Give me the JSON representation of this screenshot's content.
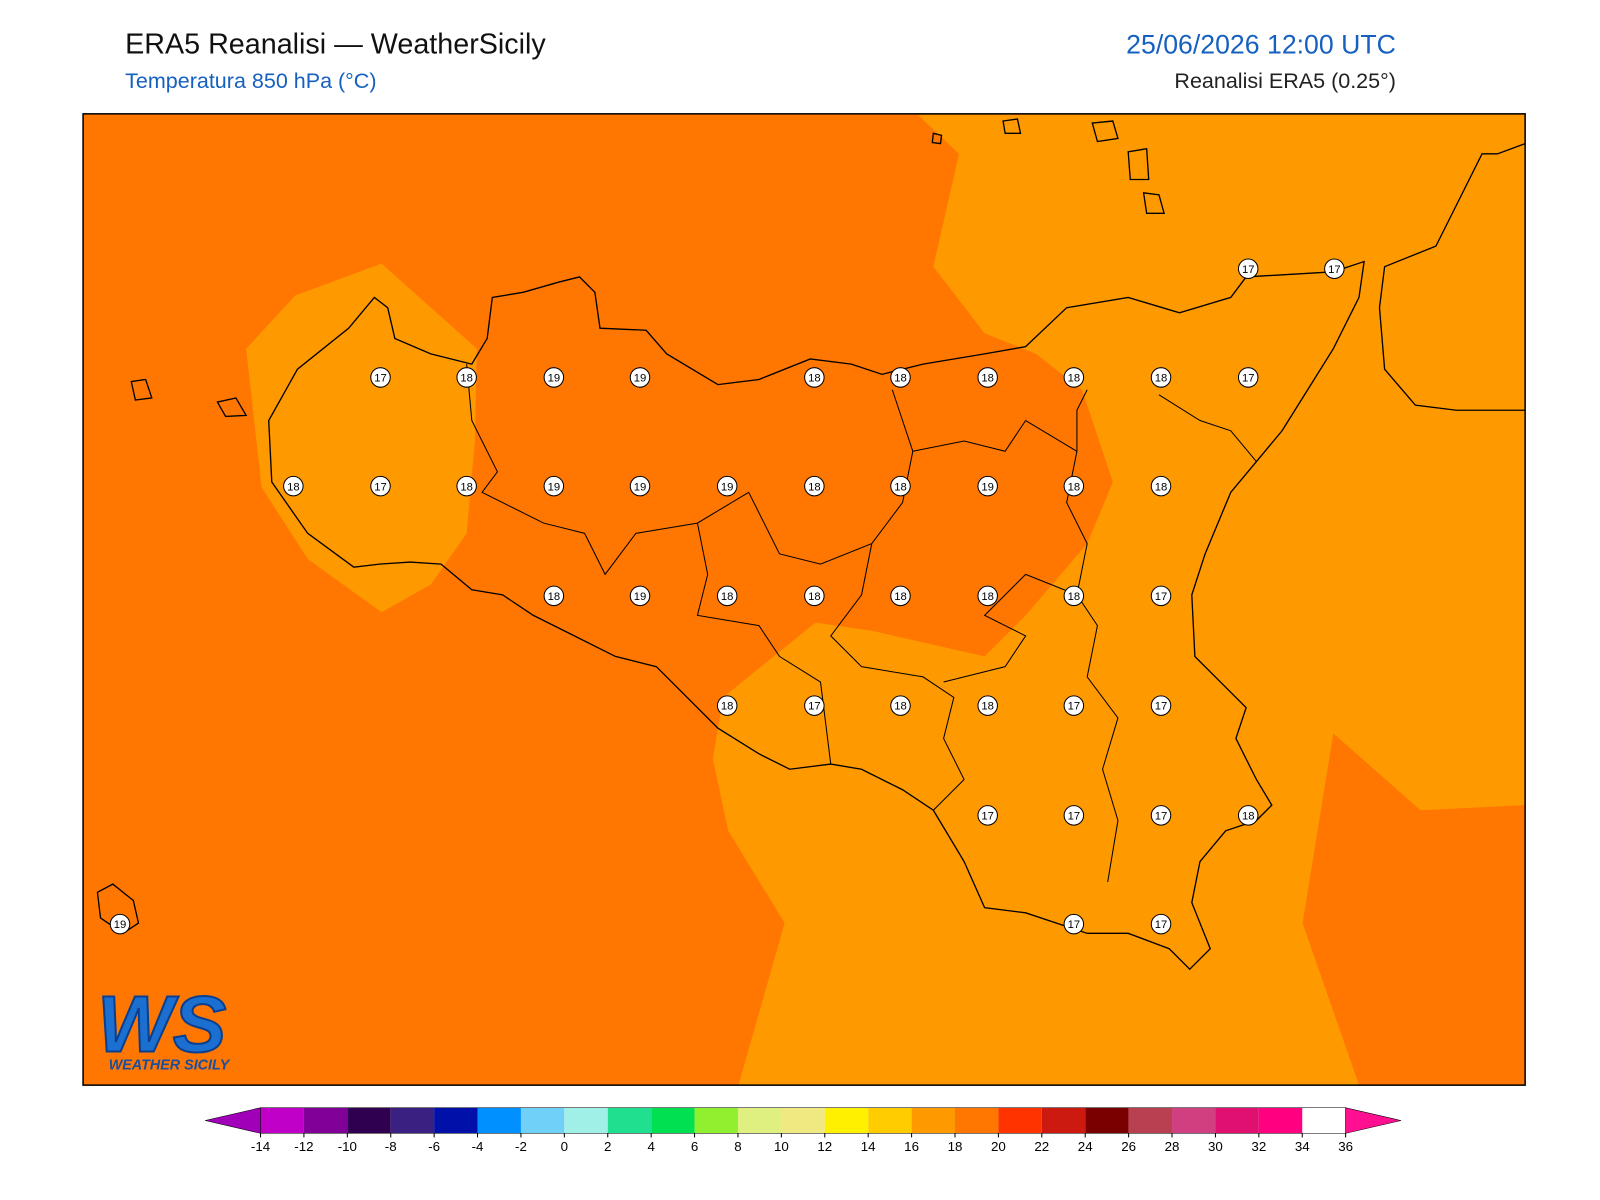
{
  "header": {
    "title": "ERA5 Reanalisi — WeatherSicily",
    "subtitle": "Temperatura 850 hPa (°C)",
    "datetime": "25/06/2026 12:00 UTC",
    "source": "Reanalisi ERA5 (0.25°)"
  },
  "stations": [
    17,
    17,
    17,
    18,
    19,
    19,
    18,
    18,
    18,
    18,
    18,
    17,
    18,
    17,
    18,
    19,
    19,
    19,
    18,
    18,
    19,
    18,
    18,
    18,
    19,
    18,
    18,
    18,
    18,
    18,
    17,
    18,
    17,
    18,
    18,
    17,
    17,
    17,
    17,
    17,
    18,
    19,
    17,
    17
  ],
  "colorbar": {
    "ticks": [
      -14,
      -12,
      -10,
      -8,
      -6,
      -4,
      -2,
      0,
      2,
      4,
      6,
      8,
      10,
      12,
      14,
      16,
      18,
      20,
      22,
      24,
      26,
      28,
      30,
      32,
      34,
      36
    ],
    "colors": [
      "#a000b8",
      "#c000c8",
      "#800098",
      "#300050",
      "#3a2080",
      "#0010a8",
      "#0090ff",
      "#70d0f8",
      "#a0f0e8",
      "#20e090",
      "#00e050",
      "#90f030",
      "#e0f080",
      "#f0e880",
      "#fff000",
      "#ffcc00",
      "#ff9900",
      "#ff7700",
      "#ff3300",
      "#cc1a10",
      "#7a0000",
      "#b84050",
      "#d04080",
      "#e01070",
      "#ff0080",
      "#ff1090"
    ]
  },
  "logo": {
    "mark": "WS",
    "name": "WEATHER SICILY"
  }
}
